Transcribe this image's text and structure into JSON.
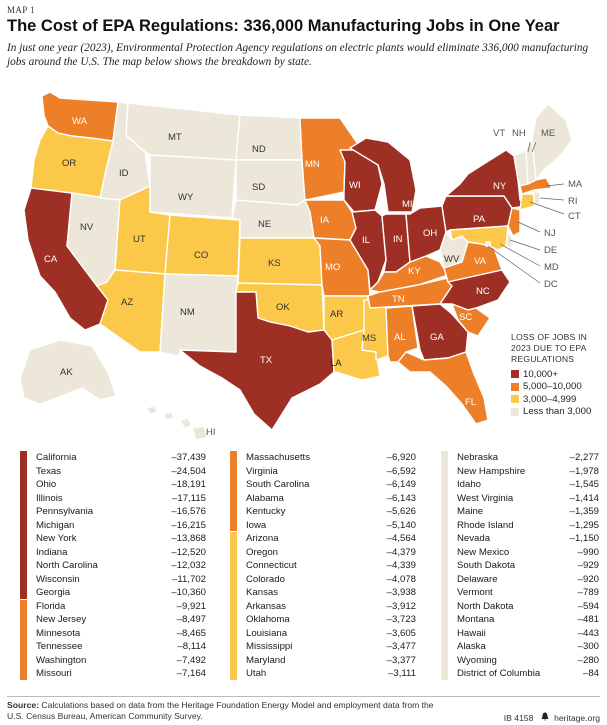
{
  "header": {
    "map_label": "MAP 1",
    "title": "The Cost of EPA Regulations: 336,000 Manufacturing Jobs in One Year",
    "subtitle": "In just one year (2023), Environmental Protection Agency regulations on electric plants would eliminate 336,000 manufacturing jobs around the U.S. The map below shows the breakdown by state."
  },
  "colors": {
    "dark_red": "#9e2f24",
    "orange": "#ec7f27",
    "yellow": "#fbc84a",
    "beige": "#ede7d9",
    "border": "#ffffff"
  },
  "legend": {
    "title": "LOSS OF JOBS IN 2023 DUE TO EPA REGULATIONS",
    "items": [
      {
        "label": "10,000+",
        "category": "dark_red"
      },
      {
        "label": "5,000–10,000",
        "category": "orange"
      },
      {
        "label": "3,000–4,999",
        "category": "yellow"
      },
      {
        "label": "Less than 3,000",
        "category": "beige"
      }
    ]
  },
  "map_labels": [
    {
      "id": "WA",
      "category": "orange"
    },
    {
      "id": "OR",
      "category": "yellow"
    },
    {
      "id": "CA",
      "category": "dark_red"
    },
    {
      "id": "NV",
      "category": "beige"
    },
    {
      "id": "ID",
      "category": "beige"
    },
    {
      "id": "MT",
      "category": "beige"
    },
    {
      "id": "WY",
      "category": "beige"
    },
    {
      "id": "UT",
      "category": "yellow"
    },
    {
      "id": "AZ",
      "category": "yellow"
    },
    {
      "id": "CO",
      "category": "yellow"
    },
    {
      "id": "NM",
      "category": "beige"
    },
    {
      "id": "ND",
      "category": "beige"
    },
    {
      "id": "SD",
      "category": "beige"
    },
    {
      "id": "NE",
      "category": "beige"
    },
    {
      "id": "KS",
      "category": "yellow"
    },
    {
      "id": "OK",
      "category": "yellow"
    },
    {
      "id": "TX",
      "category": "dark_red"
    },
    {
      "id": "MN",
      "category": "orange"
    },
    {
      "id": "IA",
      "category": "orange"
    },
    {
      "id": "MO",
      "category": "orange"
    },
    {
      "id": "AR",
      "category": "yellow"
    },
    {
      "id": "LA",
      "category": "yellow"
    },
    {
      "id": "WI",
      "category": "dark_red"
    },
    {
      "id": "IL",
      "category": "dark_red"
    },
    {
      "id": "MS",
      "category": "yellow"
    },
    {
      "id": "MI",
      "category": "dark_red"
    },
    {
      "id": "IN",
      "category": "dark_red"
    },
    {
      "id": "KY",
      "category": "orange"
    },
    {
      "id": "TN",
      "category": "orange"
    },
    {
      "id": "AL",
      "category": "orange"
    },
    {
      "id": "OH",
      "category": "dark_red"
    },
    {
      "id": "GA",
      "category": "dark_red"
    },
    {
      "id": "FL",
      "category": "orange"
    },
    {
      "id": "WV",
      "category": "beige"
    },
    {
      "id": "VA",
      "category": "orange"
    },
    {
      "id": "NC",
      "category": "dark_red"
    },
    {
      "id": "SC",
      "category": "orange"
    },
    {
      "id": "PA",
      "category": "dark_red"
    },
    {
      "id": "NY",
      "category": "dark_red"
    },
    {
      "id": "VT",
      "category": "beige"
    },
    {
      "id": "NH",
      "category": "beige"
    },
    {
      "id": "ME",
      "category": "beige"
    },
    {
      "id": "MA",
      "category": "orange"
    },
    {
      "id": "RI",
      "category": "beige"
    },
    {
      "id": "CT",
      "category": "yellow"
    },
    {
      "id": "NJ",
      "category": "orange"
    },
    {
      "id": "DE",
      "category": "beige"
    },
    {
      "id": "MD",
      "category": "yellow"
    },
    {
      "id": "DC",
      "category": "beige"
    },
    {
      "id": "AK",
      "category": "beige"
    },
    {
      "id": "HI",
      "category": "beige"
    }
  ],
  "table": {
    "columns": [
      {
        "segments": [
          {
            "category": "dark_red",
            "count": 11
          },
          {
            "category": "orange",
            "count": 6
          }
        ],
        "rows": [
          {
            "state": "California",
            "value": "–37,439"
          },
          {
            "state": "Texas",
            "value": "–24,504"
          },
          {
            "state": "Ohio",
            "value": "–18,191"
          },
          {
            "state": "Illinois",
            "value": "–17,115"
          },
          {
            "state": "Pennsylvania",
            "value": "–16,576"
          },
          {
            "state": "Michigan",
            "value": "–16,215"
          },
          {
            "state": "New York",
            "value": "–13,868"
          },
          {
            "state": "Indiana",
            "value": "–12,520"
          },
          {
            "state": "North Carolina",
            "value": "–12,032"
          },
          {
            "state": "Wisconsin",
            "value": "–11,702"
          },
          {
            "state": "Georgia",
            "value": "–10,360"
          },
          {
            "state": "Florida",
            "value": "–9,921"
          },
          {
            "state": "New Jersey",
            "value": "–8,497"
          },
          {
            "state": "Minnesota",
            "value": "–8,465"
          },
          {
            "state": "Tennessee",
            "value": "–8,114"
          },
          {
            "state": "Washington",
            "value": "–7,492"
          },
          {
            "state": "Missouri",
            "value": "–7,164"
          }
        ]
      },
      {
        "segments": [
          {
            "category": "orange",
            "count": 6
          },
          {
            "category": "yellow",
            "count": 11
          }
        ],
        "rows": [
          {
            "state": "Massachusetts",
            "value": "–6,920"
          },
          {
            "state": "Virginia",
            "value": "–6,592"
          },
          {
            "state": "South Carolina",
            "value": "–6,149"
          },
          {
            "state": "Alabama",
            "value": "–6,143"
          },
          {
            "state": "Kentucky",
            "value": "–5,626"
          },
          {
            "state": "Iowa",
            "value": "–5,140"
          },
          {
            "state": "Arizona",
            "value": "–4,564"
          },
          {
            "state": "Oregon",
            "value": "–4,379"
          },
          {
            "state": "Connecticut",
            "value": "–4,339"
          },
          {
            "state": "Colorado",
            "value": "–4,078"
          },
          {
            "state": "Kansas",
            "value": "–3,938"
          },
          {
            "state": "Arkansas",
            "value": "–3,912"
          },
          {
            "state": "Oklahoma",
            "value": "–3,723"
          },
          {
            "state": "Louisiana",
            "value": "–3,605"
          },
          {
            "state": "Mississippi",
            "value": "–3,477"
          },
          {
            "state": "Maryland",
            "value": "–3,377"
          },
          {
            "state": "Utah",
            "value": "–3,111"
          }
        ]
      },
      {
        "segments": [
          {
            "category": "beige",
            "count": 17
          }
        ],
        "rows": [
          {
            "state": "Nebraska",
            "value": "–2,277"
          },
          {
            "state": "New Hampshire",
            "value": "–1,978"
          },
          {
            "state": "Idaho",
            "value": "–1,545"
          },
          {
            "state": "West Virginia",
            "value": "–1,414"
          },
          {
            "state": "Maine",
            "value": "–1,359"
          },
          {
            "state": "Rhode Island",
            "value": "–1,295"
          },
          {
            "state": "Nevada",
            "value": "–1,150"
          },
          {
            "state": "New Mexico",
            "value": "–990"
          },
          {
            "state": "South Dakota",
            "value": "–929"
          },
          {
            "state": "Delaware",
            "value": "–920"
          },
          {
            "state": "Vermont",
            "value": "–789"
          },
          {
            "state": "North Dakota",
            "value": "–594"
          },
          {
            "state": "Montana",
            "value": "–481"
          },
          {
            "state": "Hawaii",
            "value": "–443"
          },
          {
            "state": "Alaska",
            "value": "–300"
          },
          {
            "state": "Wyoming",
            "value": "–280"
          },
          {
            "state": "District of Columbia",
            "value": "–84"
          }
        ]
      }
    ]
  },
  "footer": {
    "source_label": "Source:",
    "source_text": "Calculations based on data from the Heritage Foundation Energy Model and employment data from the U.S. Census Bureau, American Community Survey.",
    "report_id": "IB 4158",
    "site": "heritage.org",
    "logo_icon": "liberty-bell-icon"
  }
}
